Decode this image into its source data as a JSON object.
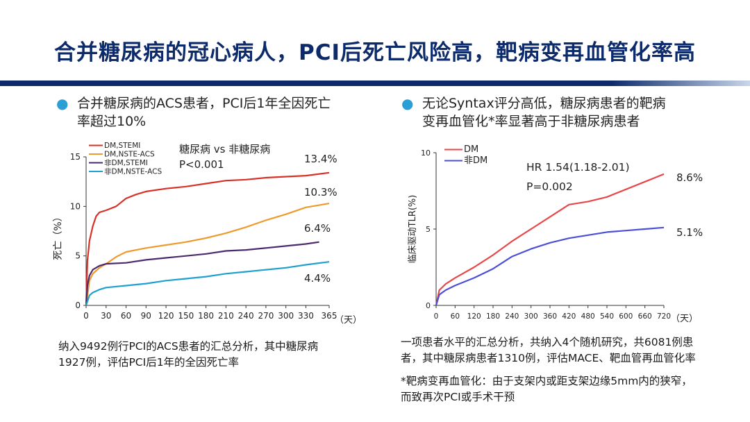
{
  "slide": {
    "title": "合并糖尿病的冠心病人，PCI后死亡风险高，靶病变再血管化率高"
  },
  "left": {
    "bullet_line1": "合并糖尿病的ACS患者，PCI后1年全因死亡",
    "bullet_line2": "率超过10%",
    "footnote_line1": "纳入9492例行PCI的ACS患者的汇总分析，其中糖尿病",
    "footnote_line2": "1927例，评估PCI后1年的全因死亡率"
  },
  "right": {
    "bullet_line1": "无论Syntax评分高低，糖尿病患者的靶病",
    "bullet_line2": "变再血管化*率显著高于非糖尿病患者",
    "footnote1_line1": "一项患者水平的汇总分析，共纳入4个随机研究，共6081例患",
    "footnote1_line2": "者，其中糖尿病患者1310例，评估MACE、靶血管再血管化率",
    "footnote2_line1": "*靶病变再血管化：由于支架内或距支架边缘5mm内的狭窄，",
    "footnote2_line2": "而致再次PCI或手术干预"
  },
  "colors": {
    "title": "#0d2a6b",
    "bullet_dot": "#2a9fd6",
    "dm_stemi": "#d93025",
    "dm_nste": "#ef9a2d",
    "nondm_stemi": "#4a2a6e",
    "nondm_nste": "#1ea0d0",
    "dm_right": "#e8474a",
    "nondm_right": "#4a4fd8"
  },
  "chart_data": [
    {
      "type": "line",
      "ylabel": "死亡（%）",
      "x_unit": "（天）",
      "xlim": [
        0,
        365
      ],
      "ylim": [
        0,
        15
      ],
      "x_ticks": [
        0,
        30,
        60,
        90,
        120,
        150,
        180,
        210,
        240,
        270,
        300,
        330,
        365
      ],
      "y_ticks": [
        0,
        5,
        10,
        15
      ],
      "legend_position": "top-left",
      "annotation_line1": "糖尿病 vs 非糖尿病",
      "annotation_line2": "P<0.001",
      "series": [
        {
          "name": "DM,STEMI",
          "color": "#d93025",
          "end_label": "13.4%",
          "x": [
            0,
            2,
            5,
            10,
            15,
            20,
            30,
            45,
            60,
            75,
            90,
            120,
            150,
            180,
            210,
            240,
            270,
            300,
            330,
            365
          ],
          "y": [
            0,
            4.5,
            6.5,
            8.0,
            9.0,
            9.4,
            9.6,
            10.0,
            10.8,
            11.2,
            11.5,
            11.8,
            12.0,
            12.3,
            12.6,
            12.7,
            12.9,
            13.0,
            13.1,
            13.4
          ]
        },
        {
          "name": "DM,NSTE-ACS",
          "color": "#ef9a2d",
          "end_label": "10.3%",
          "x": [
            0,
            5,
            10,
            20,
            30,
            45,
            60,
            90,
            120,
            150,
            180,
            210,
            240,
            270,
            300,
            330,
            365
          ],
          "y": [
            0,
            2.5,
            3.2,
            3.8,
            4.2,
            4.9,
            5.4,
            5.8,
            6.1,
            6.4,
            6.8,
            7.3,
            7.9,
            8.6,
            9.2,
            9.9,
            10.3
          ]
        },
        {
          "name": "非DM,STEMI",
          "color": "#4a2a6e",
          "end_label": "6.4%",
          "x": [
            0,
            2,
            5,
            10,
            20,
            30,
            60,
            90,
            120,
            150,
            180,
            210,
            240,
            270,
            300,
            330,
            350
          ],
          "y": [
            0,
            2.0,
            3.0,
            3.6,
            4.0,
            4.2,
            4.3,
            4.6,
            4.8,
            5.0,
            5.2,
            5.5,
            5.6,
            5.8,
            6.0,
            6.2,
            6.4
          ]
        },
        {
          "name": "非DM,NSTE-ACS",
          "color": "#1ea0d0",
          "end_label": "4.4%",
          "x": [
            0,
            5,
            10,
            20,
            30,
            60,
            90,
            120,
            150,
            180,
            210,
            240,
            270,
            300,
            330,
            365
          ],
          "y": [
            0,
            1.0,
            1.3,
            1.6,
            1.8,
            2.0,
            2.2,
            2.5,
            2.7,
            2.9,
            3.2,
            3.4,
            3.6,
            3.8,
            4.1,
            4.4
          ]
        }
      ]
    },
    {
      "type": "line",
      "ylabel": "临床驱动TLR(%)",
      "x_unit": "（天）",
      "xlim": [
        0,
        720
      ],
      "ylim": [
        0,
        10
      ],
      "x_ticks": [
        0,
        60,
        120,
        180,
        240,
        300,
        360,
        420,
        480,
        540,
        600,
        660,
        720
      ],
      "y_ticks": [
        0,
        5,
        10
      ],
      "legend_position": "top-left",
      "annotation_line1": "HR 1.54(1.18-2.01)",
      "annotation_line2": "P=0.002",
      "series": [
        {
          "name": "DM",
          "color": "#e8474a",
          "end_label": "8.6%",
          "x": [
            0,
            10,
            30,
            60,
            120,
            180,
            240,
            300,
            360,
            420,
            480,
            540,
            600,
            660,
            720
          ],
          "y": [
            0,
            1.0,
            1.4,
            1.8,
            2.5,
            3.3,
            4.2,
            5.0,
            5.8,
            6.6,
            6.8,
            7.1,
            7.6,
            8.1,
            8.6
          ]
        },
        {
          "name": "非DM",
          "color": "#4a4fd8",
          "end_label": "5.1%",
          "x": [
            0,
            10,
            30,
            60,
            120,
            180,
            240,
            300,
            360,
            420,
            480,
            540,
            600,
            660,
            720
          ],
          "y": [
            0,
            0.7,
            1.0,
            1.3,
            1.8,
            2.4,
            3.2,
            3.7,
            4.1,
            4.4,
            4.6,
            4.8,
            4.9,
            5.0,
            5.1
          ]
        }
      ]
    }
  ]
}
